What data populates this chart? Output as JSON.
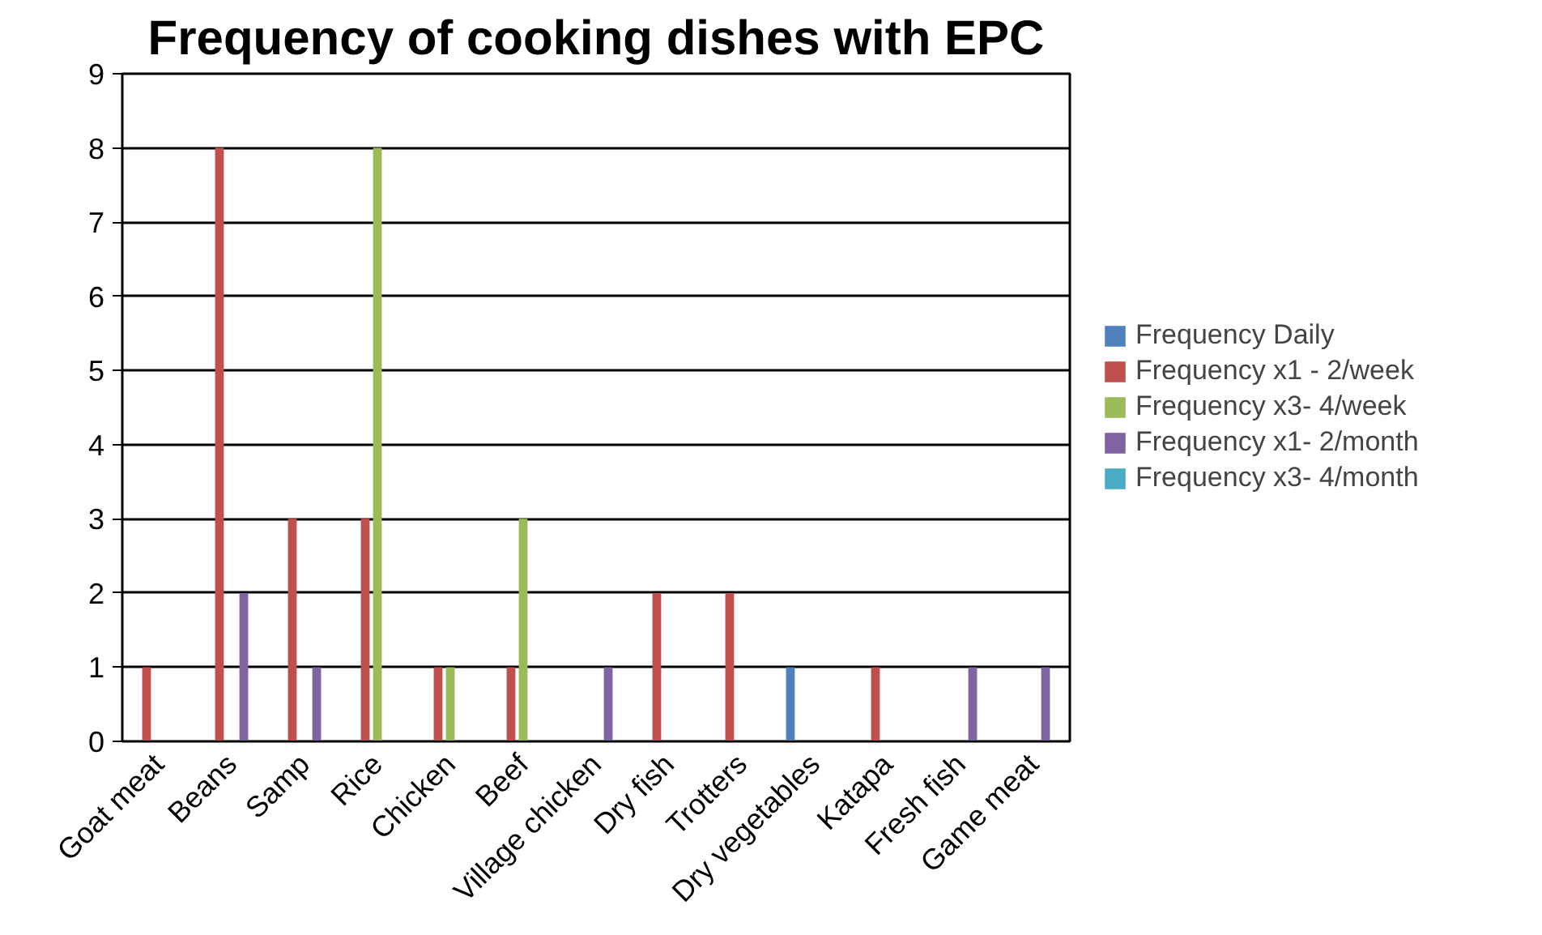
{
  "chart_data": {
    "type": "bar",
    "title": "Frequency of cooking dishes with EPC",
    "categories": [
      "Goat meat",
      "Beans",
      "Samp",
      "Rice",
      "Chicken",
      "Beef",
      "Village chicken",
      "Dry fish",
      "Trotters",
      "Dry vegetables",
      "Katapa",
      "Fresh fish",
      "Game meat"
    ],
    "series": [
      {
        "name": "Frequency Daily",
        "color": "#4f81bd",
        "values": [
          0,
          0,
          0,
          0,
          0,
          0,
          0,
          0,
          0,
          1,
          0,
          0,
          0
        ]
      },
      {
        "name": "Frequency x1 - 2/week",
        "color": "#c0504d",
        "values": [
          1,
          8,
          3,
          3,
          1,
          1,
          0,
          2,
          2,
          0,
          1,
          0,
          0
        ]
      },
      {
        "name": "Frequency x3- 4/week",
        "color": "#9bbb59",
        "values": [
          0,
          0,
          0,
          8,
          1,
          3,
          0,
          0,
          0,
          0,
          0,
          0,
          0
        ]
      },
      {
        "name": "Frequency x1- 2/month",
        "color": "#8064a2",
        "values": [
          0,
          2,
          1,
          0,
          0,
          0,
          1,
          0,
          0,
          0,
          0,
          1,
          1
        ]
      },
      {
        "name": "Frequency x3- 4/month",
        "color": "#4bacc6",
        "values": [
          0,
          0,
          0,
          0,
          0,
          0,
          0,
          0,
          0,
          0,
          0,
          0,
          0
        ]
      }
    ],
    "ylim": [
      0,
      9
    ],
    "yticks": [
      0,
      1,
      2,
      3,
      4,
      5,
      6,
      7,
      8,
      9
    ],
    "grid": "y",
    "legend": "right"
  }
}
